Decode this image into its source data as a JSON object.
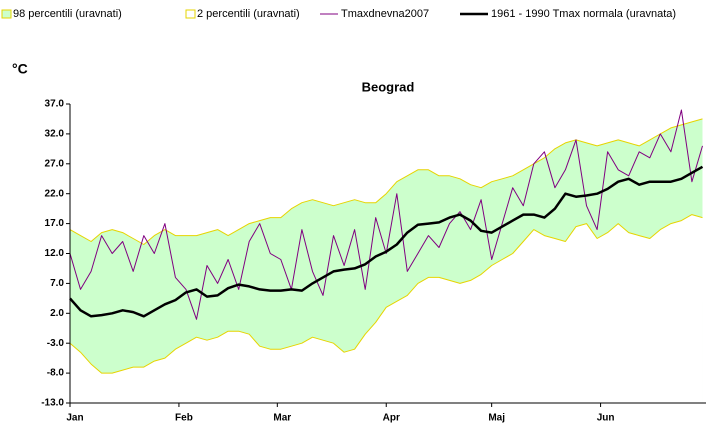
{
  "chart_data": {
    "type": "line",
    "title": "Beograd",
    "y_label": "°C",
    "x": [
      0,
      3,
      6,
      9,
      12,
      15,
      18,
      21,
      24,
      27,
      30,
      33,
      36,
      39,
      42,
      45,
      48,
      51,
      54,
      57,
      60,
      63,
      66,
      69,
      72,
      75,
      78,
      81,
      84,
      87,
      90,
      93,
      96,
      99,
      102,
      105,
      108,
      111,
      114,
      117,
      120,
      123,
      126,
      129,
      132,
      135,
      138,
      141,
      144,
      147,
      150,
      153,
      156,
      159,
      162,
      165,
      168,
      171,
      174,
      177,
      180
    ],
    "xlim": [
      0,
      181
    ],
    "xticks": [
      {
        "value": 0,
        "label": "Jan"
      },
      {
        "value": 31,
        "label": "Feb"
      },
      {
        "value": 59,
        "label": "Mar"
      },
      {
        "value": 90,
        "label": "Apr"
      },
      {
        "value": 120,
        "label": "Maj"
      },
      {
        "value": 151,
        "label": "Jun"
      }
    ],
    "ylim": [
      -13,
      37
    ],
    "yticks": [
      {
        "value": -13,
        "label": "-13.0"
      },
      {
        "value": -8,
        "label": "-8.0"
      },
      {
        "value": -3,
        "label": "-3.0"
      },
      {
        "value": 2,
        "label": "2.0"
      },
      {
        "value": 7,
        "label": "7.0"
      },
      {
        "value": 12,
        "label": "12.0"
      },
      {
        "value": 17,
        "label": "17.0"
      },
      {
        "value": 22,
        "label": "22.0"
      },
      {
        "value": 27,
        "label": "27.0"
      },
      {
        "value": 32,
        "label": "32.0"
      },
      {
        "value": 37,
        "label": "37.0"
      }
    ],
    "grid": false,
    "legend": "top",
    "series": [
      {
        "name": "98 percentili (uravnati)",
        "type": "area",
        "color": "#ccffcc",
        "line_color": "#e6d400",
        "values": [
          16,
          15,
          14,
          15.5,
          16,
          15.5,
          14.5,
          13.5,
          15,
          16,
          15,
          15,
          15,
          15.5,
          16,
          15,
          16,
          17,
          17.5,
          18,
          18,
          19.5,
          20.5,
          21,
          20.5,
          20,
          20.5,
          21,
          20.5,
          20.5,
          22,
          24,
          25,
          26,
          26,
          25,
          25,
          24.5,
          23.5,
          23,
          24,
          24.5,
          25,
          26,
          27,
          28,
          29.5,
          30.5,
          31,
          30.5,
          30,
          30.5,
          31,
          30.5,
          30,
          31,
          32,
          33,
          33.5,
          34,
          34.5
        ]
      },
      {
        "name": "2 percentili (uravnati)",
        "type": "area",
        "color": "#ffffff",
        "line_color": "#e6d400",
        "values": [
          -3,
          -4.5,
          -6.5,
          -8,
          -8,
          -7.5,
          -7,
          -7,
          -6,
          -5.5,
          -4,
          -3,
          -2,
          -2.5,
          -2,
          -1,
          -1,
          -1.5,
          -3.5,
          -4,
          -4,
          -3.5,
          -3,
          -2,
          -2.5,
          -3,
          -4.5,
          -4,
          -1.5,
          0.5,
          3,
          4,
          5,
          7,
          8,
          8,
          7.5,
          7,
          7.5,
          8.5,
          10,
          11,
          12,
          14,
          16,
          15,
          14.5,
          14,
          16.5,
          17,
          14.5,
          15.5,
          17,
          15.5,
          15,
          14.5,
          16,
          17,
          17.5,
          18.5,
          18
        ]
      },
      {
        "name": "Tmaxdnevna2007",
        "type": "line",
        "color": "#800080",
        "width": 1,
        "values": [
          12,
          6,
          9,
          15,
          12,
          14,
          9,
          15,
          12,
          17,
          8,
          6,
          1,
          10,
          7,
          11,
          6,
          14,
          17,
          12,
          11,
          6,
          16,
          9,
          5,
          15,
          10,
          16,
          6,
          18,
          12,
          22,
          9,
          12,
          15,
          13,
          17,
          19,
          16,
          21,
          11,
          17,
          23,
          20,
          27,
          29,
          23,
          26,
          31,
          20,
          16,
          29,
          26,
          25,
          29,
          28,
          32,
          29,
          36,
          24,
          30
        ]
      },
      {
        "name": "1961 - 1990 Tmax normala (uravnata)",
        "type": "line",
        "color": "#000000",
        "width": 2.5,
        "values": [
          4.5,
          2.5,
          1.5,
          1.7,
          2,
          2.5,
          2.2,
          1.5,
          2.5,
          3.5,
          4.2,
          5.5,
          6,
          4.8,
          5,
          6.2,
          6.8,
          6.5,
          6,
          5.8,
          5.8,
          6,
          5.8,
          7,
          8,
          9,
          9.3,
          9.5,
          10.2,
          11.5,
          12.3,
          13.5,
          15.5,
          16.8,
          17,
          17.2,
          18,
          18.5,
          17.5,
          15.8,
          15.5,
          16.5,
          17.5,
          18.5,
          18.5,
          18,
          19.5,
          22,
          21.5,
          21.7,
          22,
          22.8,
          24,
          24.5,
          23.5,
          24,
          24,
          24,
          24.5,
          25.5,
          26.5
        ]
      }
    ]
  }
}
